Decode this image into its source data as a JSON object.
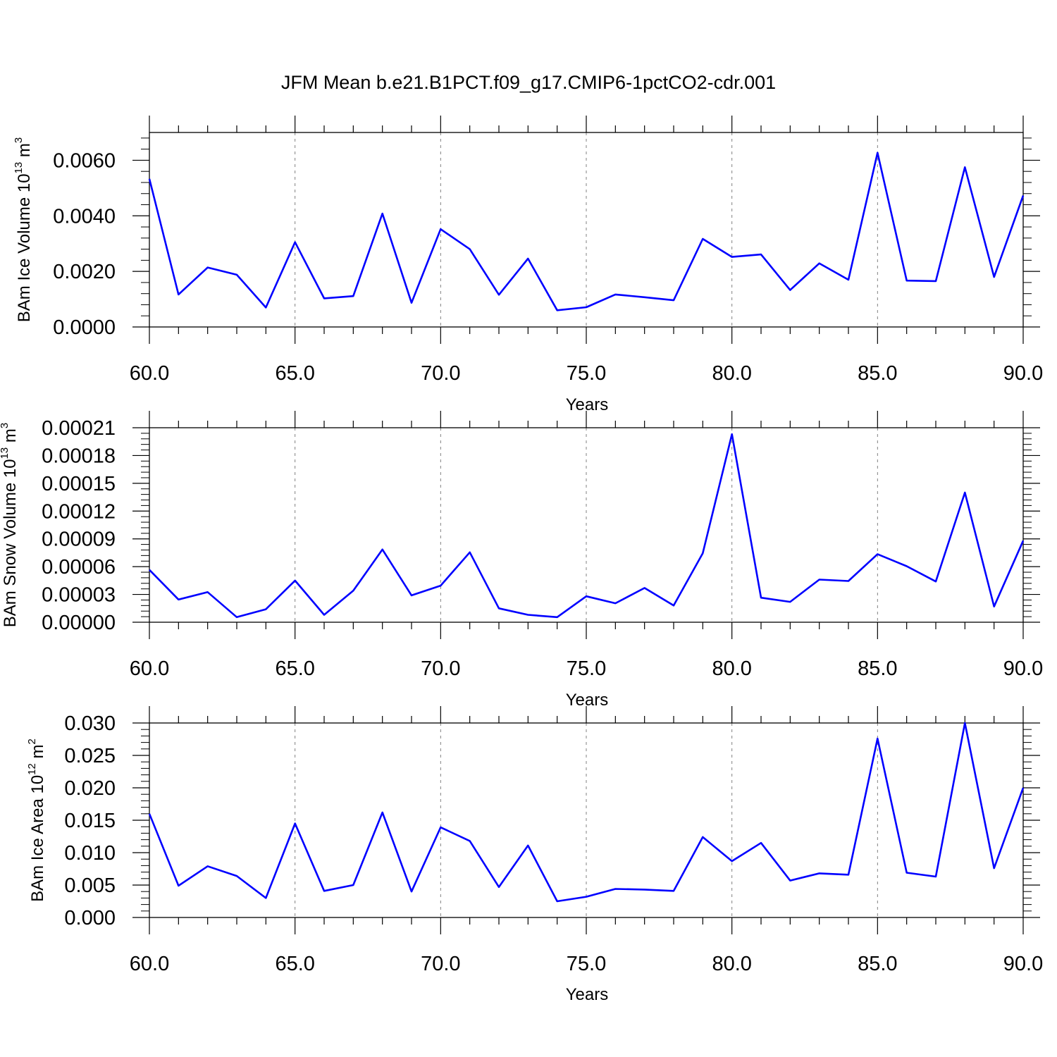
{
  "figure": {
    "title": "JFM Mean b.e21.B1PCT.f09_g17.CMIP6-1pctCO2-cdr.001",
    "line_color": "#0000ff"
  },
  "chart_data": [
    {
      "type": "line",
      "name": "ice_volume",
      "xlabel": "Years",
      "ylabel_main": "BAm Ice Volume 10",
      "ylabel_sup1": "13",
      "ylabel_mid": " m",
      "ylabel_sup2": "3",
      "xlim": [
        60,
        90
      ],
      "ylim": [
        0,
        0.007
      ],
      "xticks": [
        60,
        65,
        70,
        75,
        80,
        85,
        90
      ],
      "xtick_labels": [
        "60.0",
        "65.0",
        "70.0",
        "75.0",
        "80.0",
        "85.0",
        "90.0"
      ],
      "yticks": [
        0,
        0.002,
        0.004,
        0.006
      ],
      "ytick_labels": [
        "0.0000",
        "0.0020",
        "0.0040",
        "0.0060"
      ],
      "grid": "vertical-dashed-major",
      "x": [
        60,
        61,
        62,
        63,
        64,
        65,
        66,
        67,
        68,
        69,
        70,
        71,
        72,
        73,
        74,
        75,
        76,
        77,
        78,
        79,
        80,
        81,
        82,
        83,
        84,
        85,
        86,
        87,
        88,
        89,
        90
      ],
      "values": [
        0.00533,
        0.00117,
        0.00214,
        0.00188,
        0.0007,
        0.00305,
        0.00103,
        0.00111,
        0.00408,
        0.00087,
        0.00352,
        0.0028,
        0.00116,
        0.00246,
        0.0006,
        0.00071,
        0.00117,
        0.00107,
        0.00096,
        0.00317,
        0.00252,
        0.00261,
        0.00133,
        0.00229,
        0.0017,
        0.00627,
        0.00167,
        0.00165,
        0.00575,
        0.0018,
        0.00473
      ]
    },
    {
      "type": "line",
      "name": "snow_volume",
      "xlabel": "Years",
      "ylabel_main": "BAm Snow Volume 10",
      "ylabel_sup1": "13",
      "ylabel_mid": " m",
      "ylabel_sup2": "3",
      "xlim": [
        60,
        90
      ],
      "ylim": [
        0,
        0.00021
      ],
      "xticks": [
        60,
        65,
        70,
        75,
        80,
        85,
        90
      ],
      "xtick_labels": [
        "60.0",
        "65.0",
        "70.0",
        "75.0",
        "80.0",
        "85.0",
        "90.0"
      ],
      "yticks": [
        0,
        3e-05,
        6e-05,
        9e-05,
        0.00012,
        0.00015,
        0.00018,
        0.00021
      ],
      "ytick_labels": [
        "0.00000",
        "0.00003",
        "0.00006",
        "0.00009",
        "0.00012",
        "0.00015",
        "0.00018",
        "0.00021"
      ],
      "grid": "vertical-dashed-major",
      "x": [
        60,
        61,
        62,
        63,
        64,
        65,
        66,
        67,
        68,
        69,
        70,
        71,
        72,
        73,
        74,
        75,
        76,
        77,
        78,
        79,
        80,
        81,
        82,
        83,
        84,
        85,
        86,
        87,
        88,
        89,
        90
      ],
      "values": [
        5.65e-05,
        2.45e-05,
        3.25e-05,
        5.5e-06,
        1.4e-05,
        4.5e-05,
        8e-06,
        3.4e-05,
        7.85e-05,
        2.9e-05,
        3.95e-05,
        7.55e-05,
        1.5e-05,
        8e-06,
        5.5e-06,
        2.8e-05,
        2.05e-05,
        3.7e-05,
        1.8e-05,
        7.45e-05,
        0.000203,
        2.65e-05,
        2.2e-05,
        4.6e-05,
        4.45e-05,
        7.35e-05,
        6.05e-05,
        4.4e-05,
        0.00014,
        1.7e-05,
        8.8e-05
      ]
    },
    {
      "type": "line",
      "name": "ice_area",
      "xlabel": "Years",
      "ylabel_main": "BAm Ice Area 10",
      "ylabel_sup1": "12",
      "ylabel_mid": " m",
      "ylabel_sup2": "2",
      "xlim": [
        60,
        90
      ],
      "ylim": [
        0,
        0.03
      ],
      "xticks": [
        60,
        65,
        70,
        75,
        80,
        85,
        90
      ],
      "xtick_labels": [
        "60.0",
        "65.0",
        "70.0",
        "75.0",
        "80.0",
        "85.0",
        "90.0"
      ],
      "yticks": [
        0,
        0.005,
        0.01,
        0.015,
        0.02,
        0.025,
        0.03
      ],
      "ytick_labels": [
        "0.000",
        "0.005",
        "0.010",
        "0.015",
        "0.020",
        "0.025",
        "0.030"
      ],
      "grid": "vertical-dashed-major",
      "x": [
        60,
        61,
        62,
        63,
        64,
        65,
        66,
        67,
        68,
        69,
        70,
        71,
        72,
        73,
        74,
        75,
        76,
        77,
        78,
        79,
        80,
        81,
        82,
        83,
        84,
        85,
        86,
        87,
        88,
        89,
        90
      ],
      "values": [
        0.016,
        0.0049,
        0.0079,
        0.0064,
        0.003,
        0.0145,
        0.0041,
        0.005,
        0.0162,
        0.004,
        0.0139,
        0.0118,
        0.0047,
        0.0111,
        0.0025,
        0.0032,
        0.0044,
        0.0043,
        0.0041,
        0.0124,
        0.0087,
        0.0115,
        0.0057,
        0.0068,
        0.0066,
        0.0276,
        0.0069,
        0.0063,
        0.03,
        0.0076,
        0.02
      ]
    }
  ]
}
